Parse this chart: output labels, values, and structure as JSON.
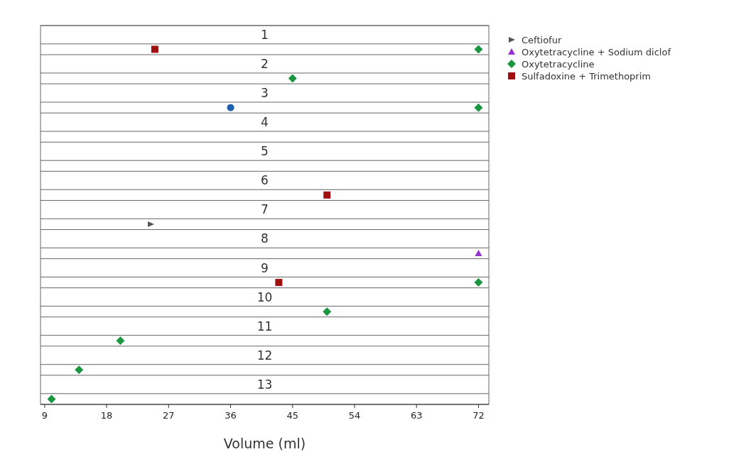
{
  "chart_data": {
    "type": "scatter",
    "orientation": "horizontal",
    "xlabel": "Volume (ml)",
    "categories": [
      "1",
      "2",
      "3",
      "4",
      "5",
      "6",
      "7",
      "8",
      "9",
      "10",
      "11",
      "12",
      "13"
    ],
    "xlim": [
      8.4,
      73.5
    ],
    "xticks": [
      9,
      18,
      27,
      36,
      45,
      54,
      63,
      72
    ],
    "legend": "top right",
    "grid": "y",
    "series": [
      {
        "name": "Ceftiofur",
        "color": "#555555",
        "marker": "triangle",
        "values": [
          null,
          null,
          null,
          null,
          null,
          null,
          24.4,
          null,
          null,
          null,
          null,
          null,
          null
        ]
      },
      {
        "name": "Oxytetracycline + Sodium diclof",
        "color": "#9b30d0",
        "marker": "triangle",
        "values": [
          null,
          null,
          null,
          null,
          null,
          null,
          null,
          72,
          null,
          null,
          null,
          null,
          null
        ]
      },
      {
        "name": "Oxytetracycline",
        "color": "#1a9641",
        "marker": "diamond",
        "values": [
          72,
          45,
          72,
          null,
          null,
          null,
          null,
          null,
          72,
          50,
          20,
          14,
          10
        ]
      },
      {
        "name": "Sulfadoxine + Trimethoprim",
        "color": "#a01010",
        "marker": "square",
        "values": [
          25,
          null,
          null,
          null,
          null,
          50,
          null,
          null,
          43,
          null,
          null,
          null,
          null
        ]
      },
      {
        "color": "#1f5fb0",
        "marker": "circle",
        "values": [
          null,
          null,
          36,
          null,
          null,
          null,
          null,
          null,
          null,
          null,
          null,
          null,
          null
        ]
      }
    ]
  }
}
